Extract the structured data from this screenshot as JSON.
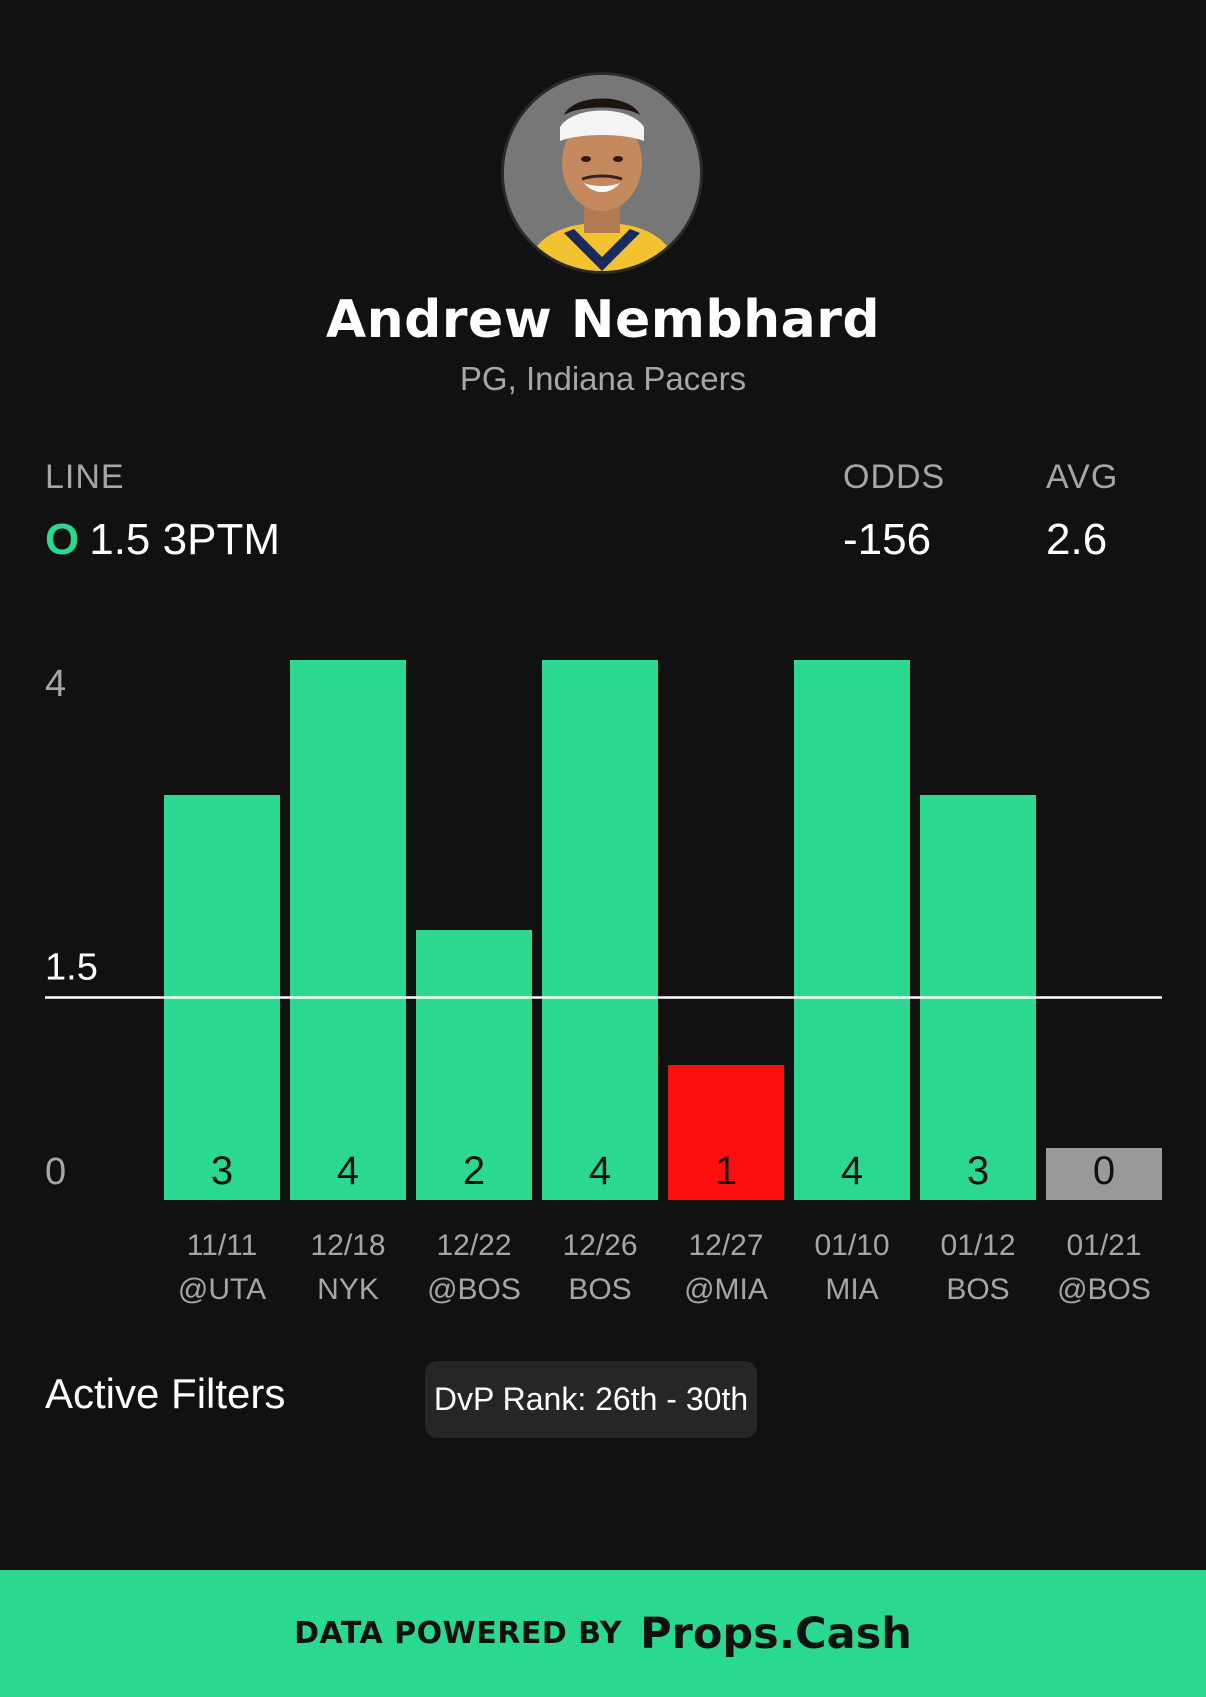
{
  "player": {
    "name": "Andrew Nembhard",
    "meta": "PG, Indiana Pacers"
  },
  "stats": {
    "line_label": "LINE",
    "line_marker": "O",
    "line_value": "1.5 3PTM",
    "odds_label": "ODDS",
    "odds_value": "-156",
    "avg_label": "AVG",
    "avg_value": "2.6"
  },
  "chart_data": {
    "type": "bar",
    "categories": [
      {
        "date": "11/11",
        "opponent": "@UTA"
      },
      {
        "date": "12/18",
        "opponent": "NYK"
      },
      {
        "date": "12/22",
        "opponent": "@BOS"
      },
      {
        "date": "12/26",
        "opponent": "BOS"
      },
      {
        "date": "12/27",
        "opponent": "@MIA"
      },
      {
        "date": "01/10",
        "opponent": "MIA"
      },
      {
        "date": "01/12",
        "opponent": "BOS"
      },
      {
        "date": "01/21",
        "opponent": "@BOS"
      }
    ],
    "values": [
      3,
      4,
      2,
      4,
      1,
      4,
      3,
      0
    ],
    "line": 1.5,
    "ylim": [
      0,
      4
    ],
    "yticks": [
      {
        "value": 0,
        "label": "0"
      },
      {
        "value": 1.5,
        "label": "1.5"
      },
      {
        "value": 4,
        "label": "4"
      }
    ],
    "colors": {
      "over": "#2ad88f",
      "under": "#ff0e0e",
      "zero": "#9a9a9a",
      "line": "#ffffff",
      "tick": "#a6a6a6"
    }
  },
  "filters": {
    "title": "Active Filters",
    "chip": "DvP Rank: 26th - 30th"
  },
  "footer": {
    "prefix": "DATA POWERED BY",
    "brand": "Props.Cash"
  }
}
